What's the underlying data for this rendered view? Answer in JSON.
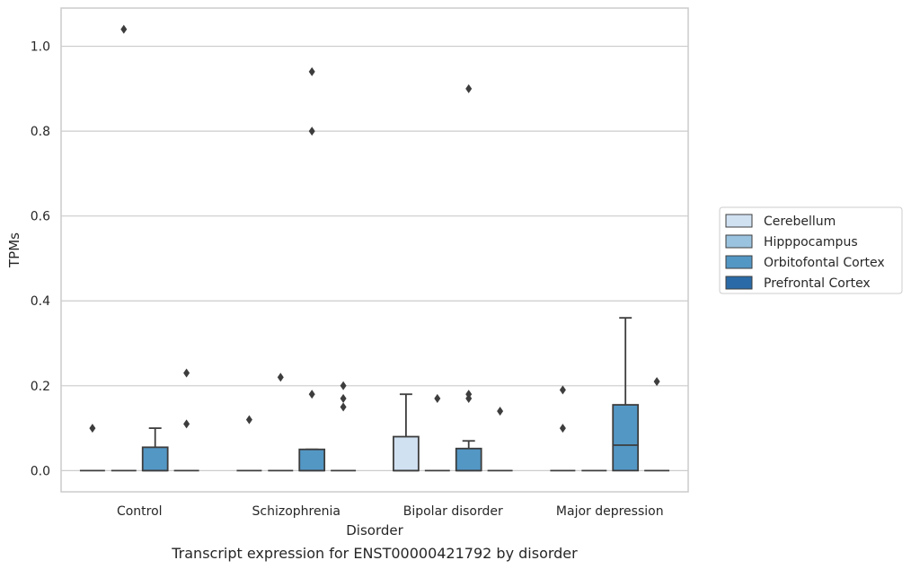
{
  "chart_data": {
    "type": "box",
    "caption": "Transcript expression for ENST00000421792 by disorder",
    "xlabel": "Disorder",
    "ylabel": "TPMs",
    "ylim": [
      -0.05,
      1.09
    ],
    "yticks": [
      0.0,
      0.2,
      0.4,
      0.6,
      0.8,
      1.0
    ],
    "ytick_labels": [
      "0.0",
      "0.2",
      "0.4",
      "0.6",
      "0.8",
      "1.0"
    ],
    "grid": "horizontal",
    "legend_position": "right",
    "categories": [
      "Control",
      "Schizophrenia",
      "Bipolar disorder",
      "Major depression"
    ],
    "series": [
      {
        "name": "Cerebellum",
        "color": "#d0e1f2",
        "boxes": [
          {
            "q1": 0,
            "median": 0,
            "q3": 0,
            "whisker_low": 0,
            "whisker_high": 0,
            "outliers": [
              0.1
            ]
          },
          {
            "q1": 0,
            "median": 0,
            "q3": 0,
            "whisker_low": 0,
            "whisker_high": 0,
            "outliers": [
              0.12
            ]
          },
          {
            "q1": 0,
            "median": 0,
            "q3": 0.08,
            "whisker_low": 0,
            "whisker_high": 0.18,
            "outliers": []
          },
          {
            "q1": 0,
            "median": 0,
            "q3": 0,
            "whisker_low": 0,
            "whisker_high": 0,
            "outliers": [
              0.1,
              0.19
            ]
          }
        ]
      },
      {
        "name": "Hipppocampus",
        "color": "#9ac3df",
        "boxes": [
          {
            "q1": 0,
            "median": 0,
            "q3": 0,
            "whisker_low": 0,
            "whisker_high": 0,
            "outliers": [
              1.04
            ]
          },
          {
            "q1": 0,
            "median": 0,
            "q3": 0,
            "whisker_low": 0,
            "whisker_high": 0,
            "outliers": [
              0.22
            ]
          },
          {
            "q1": 0,
            "median": 0,
            "q3": 0,
            "whisker_low": 0,
            "whisker_high": 0,
            "outliers": [
              0.17
            ]
          },
          {
            "q1": 0,
            "median": 0,
            "q3": 0,
            "whisker_low": 0,
            "whisker_high": 0,
            "outliers": []
          }
        ]
      },
      {
        "name": "Orbitofontal Cortex",
        "color": "#5397c5",
        "boxes": [
          {
            "q1": 0,
            "median": 0,
            "q3": 0.055,
            "whisker_low": 0,
            "whisker_high": 0.1,
            "outliers": []
          },
          {
            "q1": 0,
            "median": 0,
            "q3": 0.05,
            "whisker_low": 0,
            "whisker_high": 0.05,
            "outliers": [
              0.18,
              0.8,
              0.94
            ]
          },
          {
            "q1": 0,
            "median": 0,
            "q3": 0.052,
            "whisker_low": 0,
            "whisker_high": 0.07,
            "outliers": [
              0.17,
              0.18,
              0.9
            ]
          },
          {
            "q1": 0,
            "median": 0.06,
            "q3": 0.155,
            "whisker_low": 0,
            "whisker_high": 0.36,
            "outliers": []
          }
        ]
      },
      {
        "name": "Prefrontal Cortex",
        "color": "#2a6aa7",
        "boxes": [
          {
            "q1": 0,
            "median": 0,
            "q3": 0,
            "whisker_low": 0,
            "whisker_high": 0,
            "outliers": [
              0.11,
              0.23
            ]
          },
          {
            "q1": 0,
            "median": 0,
            "q3": 0,
            "whisker_low": 0,
            "whisker_high": 0,
            "outliers": [
              0.15,
              0.17,
              0.2
            ]
          },
          {
            "q1": 0,
            "median": 0,
            "q3": 0,
            "whisker_low": 0,
            "whisker_high": 0,
            "outliers": [
              0.14
            ]
          },
          {
            "q1": 0,
            "median": 0,
            "q3": 0,
            "whisker_low": 0,
            "whisker_high": 0,
            "outliers": [
              0.21
            ]
          }
        ]
      }
    ]
  }
}
